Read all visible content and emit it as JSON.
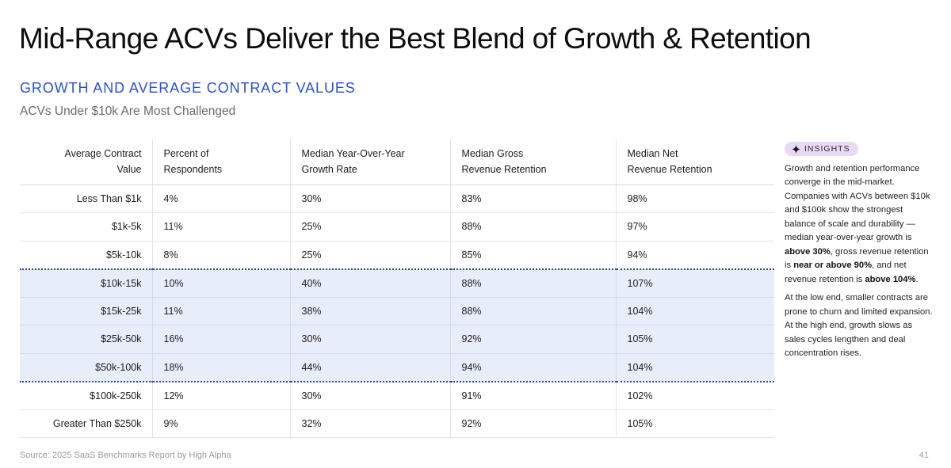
{
  "title": "Mid-Range ACVs Deliver the Best Blend of Growth & Retention",
  "section_heading": "GROWTH AND AVERAGE CONTRACT VALUES",
  "subtitle": "ACVs Under $10k Are Most Challenged",
  "table": {
    "headers": {
      "acv": [
        "Average Contract",
        "Value"
      ],
      "respondents": [
        "Percent of",
        "Respondents"
      ],
      "growth": [
        "Median Year-Over-Year",
        "Growth Rate"
      ],
      "grr": [
        "Median Gross",
        "Revenue Retention"
      ],
      "nrr": [
        "Median Net",
        "Revenue Retention"
      ]
    },
    "rows": [
      {
        "acv": "Less Than $1k",
        "respondents": "4%",
        "growth": "30%",
        "grr": "83%",
        "nrr": "98%"
      },
      {
        "acv": "$1k-5k",
        "respondents": "11%",
        "growth": "25%",
        "grr": "88%",
        "nrr": "97%"
      },
      {
        "acv": "$5k-10k",
        "respondents": "8%",
        "growth": "25%",
        "grr": "85%",
        "nrr": "94%"
      },
      {
        "acv": "$10k-15k",
        "respondents": "10%",
        "growth": "40%",
        "grr": "88%",
        "nrr": "107%"
      },
      {
        "acv": "$15k-25k",
        "respondents": "11%",
        "growth": "38%",
        "grr": "88%",
        "nrr": "104%"
      },
      {
        "acv": "$25k-50k",
        "respondents": "16%",
        "growth": "30%",
        "grr": "92%",
        "nrr": "105%"
      },
      {
        "acv": "$50k-100k",
        "respondents": "18%",
        "growth": "44%",
        "grr": "94%",
        "nrr": "104%"
      },
      {
        "acv": "$100k-250k",
        "respondents": "12%",
        "growth": "30%",
        "grr": "91%",
        "nrr": "102%"
      },
      {
        "acv": "Greater Than $250k",
        "respondents": "9%",
        "growth": "32%",
        "grr": "92%",
        "nrr": "105%"
      }
    ]
  },
  "insights": {
    "badge_label": "INSIGHTS",
    "badge_icon": "sparkle-icon",
    "badge_color": "#e8d9f7",
    "p1": {
      "t1": "Growth and retention performance converge in the mid-market. Companies with ACVs between $10k and $100k show the strongest balance of scale and durability — median year-over-year growth is ",
      "b1": "above 30%",
      "t2": ", gross revenue retention is ",
      "b2": "near or above 90%",
      "t3": ", and net revenue retention is ",
      "b3": "above 104%",
      "t4": "."
    },
    "p2": "At the low end, smaller contracts are prone to churn and limited expansion. At the high end, growth slows as sales cycles lengthen and deal concentration rises."
  },
  "footer": {
    "source": "Source: 2025 SaaS Benchmarks Report by High Alpha",
    "page_number": "41"
  },
  "colors": {
    "heading_blue": "#2a52d6",
    "highlight_fill": "#e8edfa",
    "highlight_border": "#2a3fb0"
  }
}
